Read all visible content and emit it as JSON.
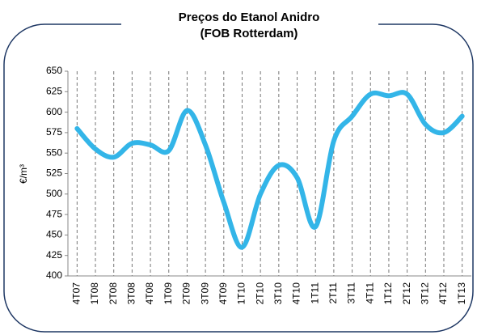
{
  "chart_data": {
    "type": "line",
    "title": [
      "Preços do Etanol Anidro",
      "(FOB Rotterdam)"
    ],
    "y_label": "€/m³",
    "categories": [
      "4T07",
      "1T08",
      "2T08",
      "3T08",
      "4T08",
      "1T09",
      "2T09",
      "3T09",
      "4T09",
      "1T10",
      "2T10",
      "3T10",
      "4T10",
      "1T11",
      "2T11",
      "3T11",
      "4T11",
      "1T12",
      "2T12",
      "3T12",
      "4T12",
      "1T13"
    ],
    "values": [
      580,
      555,
      545,
      562,
      560,
      553,
      602,
      560,
      490,
      435,
      500,
      535,
      520,
      460,
      565,
      595,
      622,
      620,
      622,
      585,
      575,
      595
    ],
    "color": "#33b5e8",
    "ylim": [
      400,
      650
    ],
    "yticks": [
      400,
      425,
      450,
      475,
      500,
      525,
      550,
      575,
      600,
      625,
      650
    ],
    "grid": "x"
  }
}
